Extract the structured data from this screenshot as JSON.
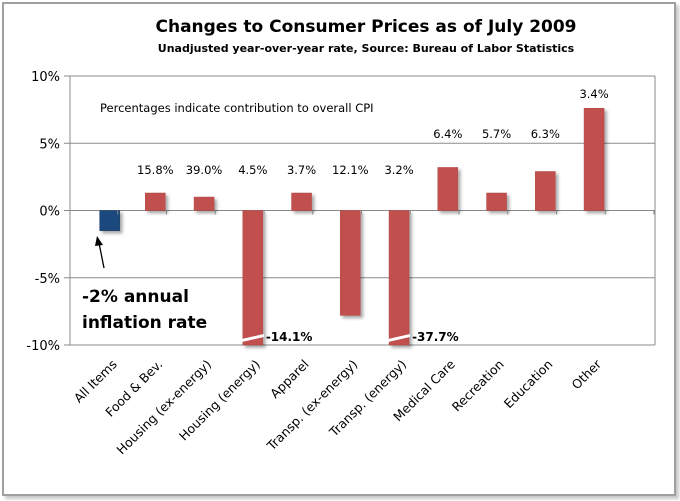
{
  "chart_data": {
    "type": "bar",
    "title": "Changes to Consumer Prices as of July 2009",
    "subtitle": "Unadjusted year-over-year rate, Source: Bureau of Labor Statistics",
    "note": "Percentages indicate contribution to overall CPI",
    "xlabel": "",
    "ylabel": "",
    "ylim": [
      -10,
      10
    ],
    "yticks": [
      10,
      5,
      0,
      -5,
      -10
    ],
    "ytick_labels": [
      "10%",
      "5%",
      "0%",
      "-5%",
      "-10%"
    ],
    "grid": true,
    "categories": [
      "All Items",
      "Food & Bev.",
      "Housing (ex-energy)",
      "Housing (energy)",
      "Apparel",
      "Transp. (ex-energy)",
      "Transp. (energy)",
      "Medical Care",
      "Recreation",
      "Education",
      "Other"
    ],
    "values": [
      -1.5,
      1.3,
      1.0,
      -14.1,
      1.3,
      -7.8,
      -37.7,
      3.2,
      1.3,
      2.9,
      7.6
    ],
    "weights": [
      "",
      "15.8%",
      "39.0%",
      "4.5%",
      "3.7%",
      "12.1%",
      "3.2%",
      "6.4%",
      "5.7%",
      "6.3%",
      "3.4%"
    ],
    "broken_bar_labels": {
      "3": "-14.1%",
      "6": "-37.7%"
    },
    "colors": {
      "all_items": "#1f497d",
      "components": "#c0504d"
    },
    "annotation": {
      "line1": "-2% annual",
      "line2": "inflation rate"
    }
  }
}
